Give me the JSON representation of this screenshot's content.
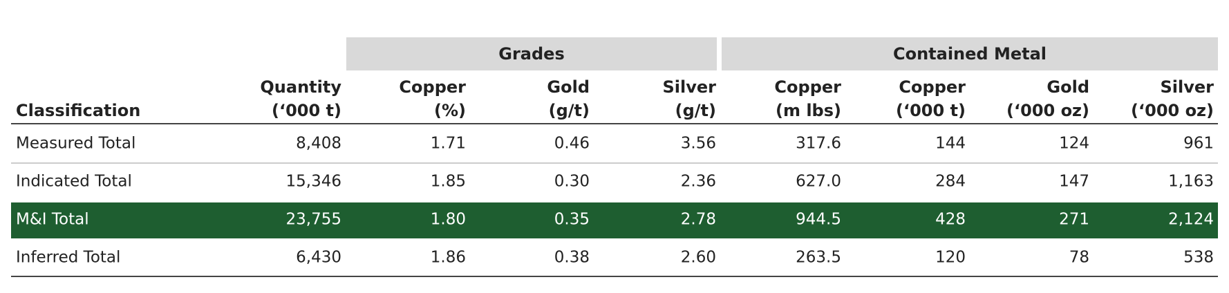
{
  "table": {
    "group_headers": [
      "Grades",
      "Contained Metal"
    ],
    "columns": [
      [
        "Classification"
      ],
      [
        "Quantity",
        "(‘000 t)"
      ],
      [
        "Copper",
        "(%)"
      ],
      [
        "Gold",
        "(g/t)"
      ],
      [
        "Silver",
        "(g/t)"
      ],
      [
        "Copper",
        "(m lbs)"
      ],
      [
        "Copper",
        "(‘000 t)"
      ],
      [
        "Gold",
        "(‘000 oz)"
      ],
      [
        "Silver",
        "(‘000 oz)"
      ]
    ],
    "rows": [
      [
        "Measured Total",
        "8,408",
        "1.71",
        "0.46",
        "3.56",
        "317.6",
        "144",
        "124",
        "961"
      ],
      [
        "Indicated Total",
        "15,346",
        "1.85",
        "0.30",
        "2.36",
        "627.0",
        "284",
        "147",
        "1,163"
      ],
      [
        "M&I Total",
        "23,755",
        "1.80",
        "0.35",
        "2.78",
        "944.5",
        "428",
        "271",
        "2,124"
      ],
      [
        "Inferred Total",
        "6,430",
        "1.86",
        "0.38",
        "2.60",
        "263.5",
        "120",
        "78",
        "538"
      ]
    ],
    "highlighted_row": 2,
    "highlight_color": "#1e5e30"
  }
}
